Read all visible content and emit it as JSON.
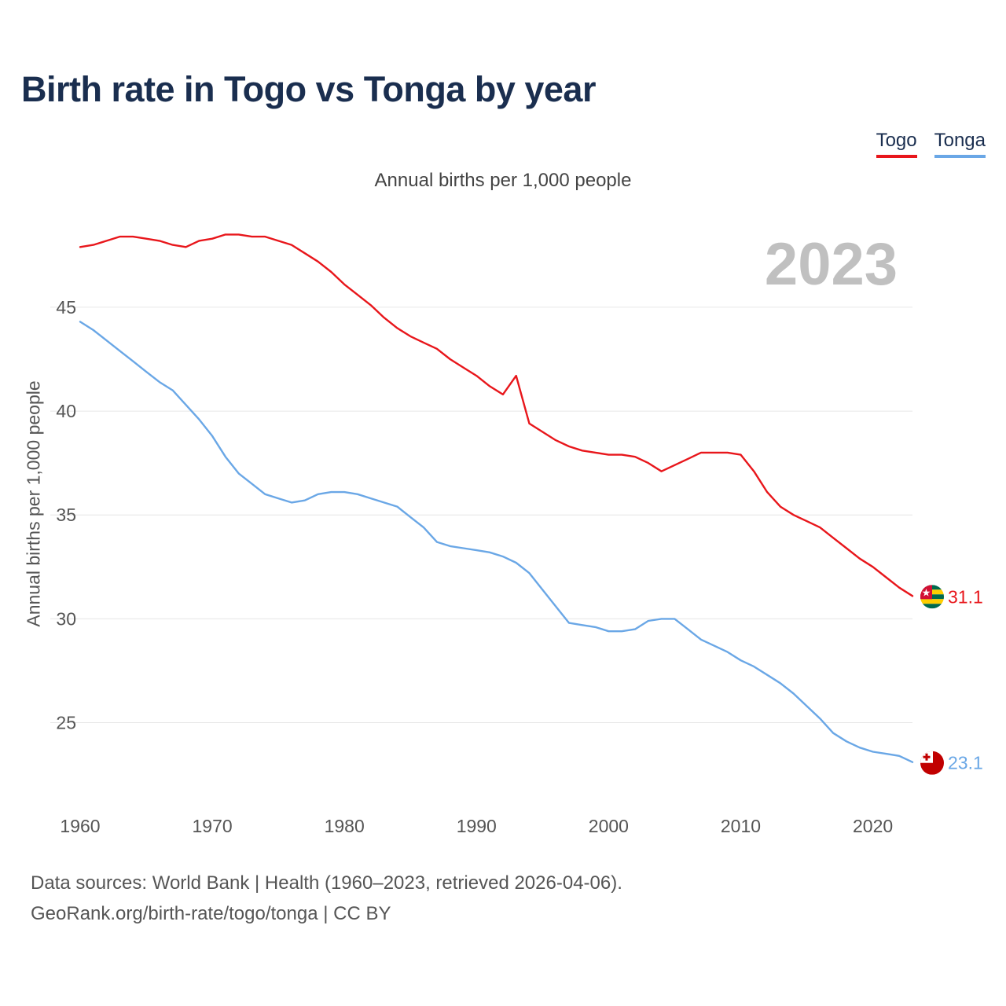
{
  "chart_data": {
    "type": "line",
    "title": "Birth rate in Togo vs Tonga by year",
    "subtitle": "Annual births per 1,000 people",
    "ylabel": "Annual births per 1,000 people",
    "xlabel": "",
    "year_label": "2023",
    "xlim": [
      1960,
      2023
    ],
    "ylim": [
      21.5,
      49.5
    ],
    "x_ticks": [
      1960,
      1970,
      1980,
      1990,
      2000,
      2010,
      2020
    ],
    "y_ticks": [
      25,
      30,
      35,
      40,
      45
    ],
    "x": [
      1960,
      1961,
      1962,
      1963,
      1964,
      1965,
      1966,
      1967,
      1968,
      1969,
      1970,
      1971,
      1972,
      1973,
      1974,
      1975,
      1976,
      1977,
      1978,
      1979,
      1980,
      1981,
      1982,
      1983,
      1984,
      1985,
      1986,
      1987,
      1988,
      1989,
      1990,
      1991,
      1992,
      1993,
      1994,
      1995,
      1996,
      1997,
      1998,
      1999,
      2000,
      2001,
      2002,
      2003,
      2004,
      2005,
      2006,
      2007,
      2008,
      2009,
      2010,
      2011,
      2012,
      2013,
      2014,
      2015,
      2016,
      2017,
      2018,
      2019,
      2020,
      2021,
      2022,
      2023
    ],
    "series": [
      {
        "name": "Togo",
        "color": "#e8161b",
        "end_value": "31.1",
        "flag": "togo-flag-icon",
        "values": [
          47.9,
          48.0,
          48.2,
          48.4,
          48.4,
          48.3,
          48.2,
          48.0,
          47.9,
          48.2,
          48.3,
          48.5,
          48.5,
          48.4,
          48.4,
          48.2,
          48.0,
          47.6,
          47.2,
          46.7,
          46.1,
          45.6,
          45.1,
          44.5,
          44.0,
          43.6,
          43.3,
          43.0,
          42.5,
          42.1,
          41.7,
          41.2,
          40.8,
          41.7,
          39.4,
          39.0,
          38.6,
          38.3,
          38.1,
          38.0,
          37.9,
          37.9,
          37.8,
          37.5,
          37.1,
          37.4,
          37.7,
          38.0,
          38.0,
          38.0,
          37.9,
          37.1,
          36.1,
          35.4,
          35.0,
          34.7,
          34.4,
          33.9,
          33.4,
          32.9,
          32.5,
          32.0,
          31.5,
          31.1
        ]
      },
      {
        "name": "Tonga",
        "color": "#6aa7e6",
        "end_value": "23.1",
        "flag": "tonga-flag-icon",
        "values": [
          44.3,
          43.9,
          43.4,
          42.9,
          42.4,
          41.9,
          41.4,
          41.0,
          40.3,
          39.6,
          38.8,
          37.8,
          37.0,
          36.5,
          36.0,
          35.8,
          35.6,
          35.7,
          36.0,
          36.1,
          36.1,
          36.0,
          35.8,
          35.6,
          35.4,
          34.9,
          34.4,
          33.7,
          33.5,
          33.4,
          33.3,
          33.2,
          33.0,
          32.7,
          32.2,
          31.4,
          30.6,
          29.8,
          29.7,
          29.6,
          29.4,
          29.4,
          29.5,
          29.9,
          30.0,
          30.0,
          29.5,
          29.0,
          28.7,
          28.4,
          28.0,
          27.7,
          27.3,
          26.9,
          26.4,
          25.8,
          25.2,
          24.5,
          24.1,
          23.8,
          23.6,
          23.5,
          23.4,
          23.1
        ]
      }
    ]
  },
  "footer": {
    "line1": "Data sources: World Bank | Health (1960–2023, retrieved 2026-04-06).",
    "line2": "GeoRank.org/birth-rate/togo/tonga | CC BY"
  }
}
